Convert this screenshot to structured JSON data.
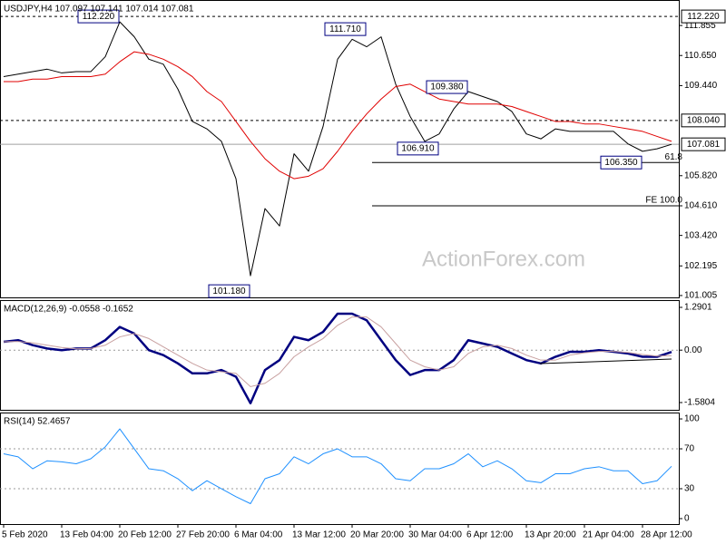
{
  "chart_data": [
    {
      "type": "line",
      "title": "USDJPY,H4  107.097 107.141 107.014 107.081",
      "watermark": "ActionForex.com",
      "categories": [
        "5 Feb 2020",
        null,
        null,
        null,
        "13 Feb 04:00",
        null,
        null,
        null,
        "20 Feb 12:00",
        null,
        null,
        null,
        "27 Feb 20:00",
        null,
        null,
        null,
        "6 Mar 04:00",
        null,
        null,
        null,
        "13 Mar 12:00",
        null,
        null,
        null,
        "20 Mar 20:00",
        null,
        null,
        null,
        "30 Mar 04:00",
        null,
        null,
        null,
        "6 Apr 12:00",
        null,
        null,
        null,
        "13 Apr 20:00",
        null,
        null,
        null,
        "21 Apr 04:00",
        null,
        null,
        null,
        "28 Apr 12:00",
        null,
        null
      ],
      "series": [
        {
          "name": "USDJPY",
          "color": "#000000",
          "width": 1,
          "values": [
            109.8,
            109.9,
            110.0,
            110.1,
            109.95,
            110.0,
            110.0,
            110.6,
            112.0,
            111.4,
            110.5,
            110.3,
            109.3,
            108.0,
            107.7,
            107.2,
            105.7,
            101.8,
            104.5,
            103.8,
            106.7,
            106.0,
            107.8,
            110.5,
            111.3,
            111.0,
            111.4,
            109.5,
            108.2,
            107.2,
            107.5,
            108.5,
            109.2,
            109.0,
            108.8,
            108.4,
            107.5,
            107.3,
            107.7,
            107.6,
            107.6,
            107.6,
            107.6,
            107.1,
            106.8,
            106.9,
            107.081
          ]
        },
        {
          "name": "MA",
          "color": "#e00000",
          "width": 1,
          "values": [
            109.6,
            109.6,
            109.7,
            109.7,
            109.8,
            109.8,
            109.8,
            109.9,
            110.4,
            110.8,
            110.7,
            110.5,
            110.2,
            109.8,
            109.2,
            108.8,
            108.0,
            107.2,
            106.5,
            106.0,
            105.7,
            105.8,
            106.1,
            106.8,
            107.6,
            108.3,
            108.9,
            109.4,
            109.5,
            109.2,
            108.9,
            108.8,
            108.7,
            108.7,
            108.7,
            108.6,
            108.4,
            108.2,
            108.0,
            108.0,
            107.9,
            107.9,
            107.8,
            107.7,
            107.6,
            107.4,
            107.2
          ]
        }
      ],
      "ylim": [
        100.93,
        112.88
      ],
      "yticks": [
        111.855,
        {
          "value": 110.65,
          "label": "110.650"
        },
        {
          "value": 109.44,
          "label": "109.440"
        },
        {
          "value": 105.82,
          "label": "105.820"
        },
        {
          "value": 104.61,
          "label": "104.610"
        },
        {
          "value": 103.42,
          "label": "103.420"
        },
        102.195,
        101.005
      ],
      "levels": [
        {
          "value": 112.22,
          "label": "112.220",
          "style": "dashed"
        },
        {
          "value": 108.04,
          "label": "108.040",
          "style": "dashed"
        },
        {
          "value": 107.081,
          "label": "107.081",
          "style": "price"
        },
        {
          "value": 106.35,
          "label": "61.8",
          "style": "fib"
        },
        {
          "value": 104.61,
          "label": "FE 100.0",
          "style": "fib"
        }
      ],
      "annotations": [
        {
          "label": "112.220",
          "index": 8,
          "value": 112.22
        },
        {
          "label": "111.710",
          "index": 25,
          "value": 111.71
        },
        {
          "label": "109.380",
          "index": 32,
          "value": 109.38
        },
        {
          "label": "106.910",
          "index": 30,
          "value": 106.91
        },
        {
          "label": "106.350",
          "index": 44,
          "value": 106.35
        },
        {
          "label": "101.180",
          "index": 17,
          "value": 101.18
        }
      ]
    },
    {
      "type": "line",
      "title": "MACD(12,26,9) -0.0558 -0.1652",
      "series": [
        {
          "name": "MACD",
          "color": "#000080",
          "width": 2.5,
          "values": [
            0.25,
            0.3,
            0.15,
            0.05,
            0.0,
            0.05,
            0.05,
            0.3,
            0.7,
            0.5,
            0.0,
            -0.15,
            -0.4,
            -0.7,
            -0.7,
            -0.6,
            -0.8,
            -1.6,
            -0.6,
            -0.3,
            0.4,
            0.3,
            0.55,
            1.1,
            1.1,
            0.9,
            0.3,
            -0.3,
            -0.75,
            -0.6,
            -0.6,
            -0.3,
            0.3,
            0.2,
            0.1,
            -0.1,
            -0.3,
            -0.4,
            -0.2,
            -0.05,
            -0.05,
            0.0,
            -0.05,
            -0.1,
            -0.2,
            -0.2,
            -0.0558
          ]
        },
        {
          "name": "Signal",
          "color": "#c8a0a0",
          "width": 1,
          "values": [
            0.25,
            0.26,
            0.22,
            0.15,
            0.08,
            0.04,
            0.05,
            0.15,
            0.4,
            0.5,
            0.35,
            0.1,
            -0.15,
            -0.4,
            -0.6,
            -0.65,
            -0.7,
            -1.1,
            -1.0,
            -0.7,
            -0.2,
            0.1,
            0.35,
            0.75,
            1.0,
            1.0,
            0.7,
            0.2,
            -0.3,
            -0.5,
            -0.6,
            -0.5,
            -0.1,
            0.1,
            0.15,
            0.05,
            -0.15,
            -0.3,
            -0.3,
            -0.15,
            -0.08,
            -0.04,
            -0.04,
            -0.07,
            -0.13,
            -0.18,
            -0.1652
          ]
        }
      ],
      "ylim": [
        -1.799,
        1.509
      ],
      "yticks": [
        1.2901,
        {
          "value": 0,
          "label": "0.00"
        },
        -1.5804
      ],
      "levels": [
        {
          "value": 0,
          "style": "dotted"
        }
      ]
    },
    {
      "type": "line",
      "title": "RSI(14) 52.4657",
      "series": [
        {
          "name": "RSI",
          "color": "#1e90ff",
          "width": 1,
          "values": [
            65,
            62,
            50,
            58,
            57,
            55,
            60,
            72,
            90,
            70,
            50,
            48,
            40,
            28,
            38,
            30,
            22,
            15,
            40,
            45,
            62,
            55,
            65,
            70,
            62,
            62,
            55,
            40,
            38,
            50,
            50,
            55,
            65,
            52,
            58,
            50,
            38,
            36,
            45,
            45,
            50,
            52,
            48,
            48,
            35,
            38,
            52.4657
          ]
        }
      ],
      "ylim": [
        -5.45,
        106.4
      ],
      "yticks": [
        100,
        70,
        30,
        0
      ],
      "levels": [
        {
          "value": 70,
          "style": "dotted"
        },
        {
          "value": 30,
          "style": "dotted"
        }
      ]
    }
  ]
}
